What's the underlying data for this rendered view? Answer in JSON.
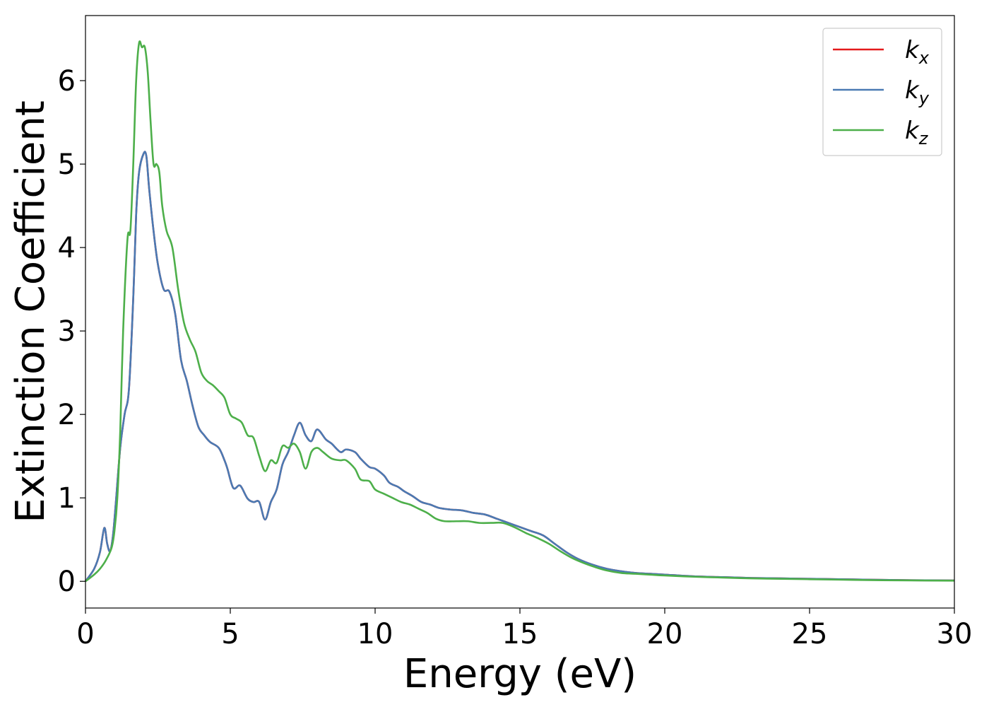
{
  "chart_data": {
    "type": "line",
    "xlabel": "Energy (eV)",
    "ylabel": "Extinction Coefficient",
    "xlim": [
      0,
      30
    ],
    "ylim": [
      -0.32,
      6.78
    ],
    "xticks": [
      "0",
      "5",
      "10",
      "15",
      "20",
      "25",
      "30"
    ],
    "yticks": [
      "0",
      "1",
      "2",
      "3",
      "4",
      "5",
      "6"
    ],
    "grid": false,
    "legend_position": "top-right",
    "series": [
      {
        "name": "k_x",
        "label_base": "k",
        "label_sub": "x",
        "color": "#e41a1c",
        "x": [
          0,
          0.3,
          0.5,
          0.65,
          0.75,
          0.85,
          0.95,
          1.05,
          1.2,
          1.35,
          1.5,
          1.65,
          1.75,
          1.85,
          2.0,
          2.1,
          2.2,
          2.35,
          2.5,
          2.7,
          2.9,
          3.1,
          3.3,
          3.5,
          3.7,
          3.9,
          4.1,
          4.3,
          4.6,
          4.8,
          4.9,
          5.1,
          5.3,
          5.4,
          5.6,
          5.8,
          6.0,
          6.2,
          6.4,
          6.6,
          6.8,
          7.0,
          7.2,
          7.4,
          7.6,
          7.8,
          8.0,
          8.3,
          8.5,
          8.8,
          9.0,
          9.3,
          9.5,
          9.8,
          10.0,
          10.3,
          10.5,
          10.8,
          11.0,
          11.3,
          11.6,
          11.9,
          12.2,
          12.6,
          13.0,
          13.4,
          13.8,
          14.2,
          14.6,
          15.0,
          15.4,
          15.8,
          16.2,
          16.6,
          17.0,
          17.5,
          18.0,
          18.5,
          19.0,
          19.5,
          20.0,
          21.0,
          22.0,
          23.0,
          24.0,
          25.0,
          26.0,
          27.0,
          28.0,
          29.0,
          30.0
        ],
        "values": [
          0,
          0.15,
          0.35,
          0.64,
          0.45,
          0.36,
          0.55,
          0.95,
          1.6,
          2.0,
          2.3,
          3.4,
          4.4,
          4.9,
          5.12,
          5.1,
          4.7,
          4.2,
          3.8,
          3.5,
          3.47,
          3.2,
          2.65,
          2.4,
          2.1,
          1.85,
          1.75,
          1.67,
          1.6,
          1.45,
          1.35,
          1.12,
          1.15,
          1.12,
          0.99,
          0.95,
          0.95,
          0.74,
          0.95,
          1.1,
          1.4,
          1.55,
          1.75,
          1.9,
          1.75,
          1.68,
          1.82,
          1.7,
          1.65,
          1.55,
          1.58,
          1.55,
          1.47,
          1.37,
          1.35,
          1.27,
          1.18,
          1.13,
          1.08,
          1.02,
          0.95,
          0.92,
          0.88,
          0.86,
          0.85,
          0.82,
          0.8,
          0.75,
          0.7,
          0.65,
          0.6,
          0.55,
          0.45,
          0.35,
          0.27,
          0.2,
          0.15,
          0.12,
          0.1,
          0.09,
          0.08,
          0.06,
          0.05,
          0.04,
          0.035,
          0.03,
          0.025,
          0.02,
          0.015,
          0.012,
          0.01
        ]
      },
      {
        "name": "k_y",
        "label_base": "k",
        "label_sub": "y",
        "color": "#4a7ab3",
        "x": [
          0,
          0.3,
          0.5,
          0.65,
          0.75,
          0.85,
          0.95,
          1.05,
          1.2,
          1.35,
          1.5,
          1.65,
          1.75,
          1.85,
          2.0,
          2.1,
          2.2,
          2.35,
          2.5,
          2.7,
          2.9,
          3.1,
          3.3,
          3.5,
          3.7,
          3.9,
          4.1,
          4.3,
          4.6,
          4.8,
          4.9,
          5.1,
          5.3,
          5.4,
          5.6,
          5.8,
          6.0,
          6.2,
          6.4,
          6.6,
          6.8,
          7.0,
          7.2,
          7.4,
          7.6,
          7.8,
          8.0,
          8.3,
          8.5,
          8.8,
          9.0,
          9.3,
          9.5,
          9.8,
          10.0,
          10.3,
          10.5,
          10.8,
          11.0,
          11.3,
          11.6,
          11.9,
          12.2,
          12.6,
          13.0,
          13.4,
          13.8,
          14.2,
          14.6,
          15.0,
          15.4,
          15.8,
          16.2,
          16.6,
          17.0,
          17.5,
          18.0,
          18.5,
          19.0,
          19.5,
          20.0,
          21.0,
          22.0,
          23.0,
          24.0,
          25.0,
          26.0,
          27.0,
          28.0,
          29.0,
          30.0
        ],
        "values": [
          0,
          0.15,
          0.35,
          0.64,
          0.45,
          0.36,
          0.55,
          0.95,
          1.6,
          2.0,
          2.3,
          3.4,
          4.4,
          4.9,
          5.12,
          5.1,
          4.7,
          4.2,
          3.8,
          3.5,
          3.47,
          3.2,
          2.65,
          2.4,
          2.1,
          1.85,
          1.75,
          1.67,
          1.6,
          1.45,
          1.35,
          1.12,
          1.15,
          1.12,
          0.99,
          0.95,
          0.95,
          0.74,
          0.95,
          1.1,
          1.4,
          1.55,
          1.75,
          1.9,
          1.75,
          1.68,
          1.82,
          1.7,
          1.65,
          1.55,
          1.58,
          1.55,
          1.47,
          1.37,
          1.35,
          1.27,
          1.18,
          1.13,
          1.08,
          1.02,
          0.95,
          0.92,
          0.88,
          0.86,
          0.85,
          0.82,
          0.8,
          0.75,
          0.7,
          0.65,
          0.6,
          0.55,
          0.45,
          0.35,
          0.27,
          0.2,
          0.15,
          0.12,
          0.1,
          0.09,
          0.08,
          0.06,
          0.05,
          0.04,
          0.035,
          0.03,
          0.025,
          0.02,
          0.015,
          0.012,
          0.01
        ]
      },
      {
        "name": "k_z",
        "label_base": "k",
        "label_sub": "z",
        "color": "#4daf4a",
        "x": [
          0,
          0.3,
          0.5,
          0.7,
          0.9,
          1.0,
          1.1,
          1.2,
          1.3,
          1.45,
          1.55,
          1.65,
          1.75,
          1.85,
          1.95,
          2.05,
          2.15,
          2.25,
          2.35,
          2.45,
          2.55,
          2.65,
          2.8,
          3.0,
          3.2,
          3.4,
          3.6,
          3.8,
          4.0,
          4.2,
          4.4,
          4.6,
          4.8,
          5.0,
          5.2,
          5.4,
          5.6,
          5.8,
          6.0,
          6.2,
          6.4,
          6.6,
          6.8,
          7.0,
          7.2,
          7.4,
          7.6,
          7.8,
          8.0,
          8.2,
          8.5,
          8.8,
          9.0,
          9.3,
          9.5,
          9.8,
          10.0,
          10.3,
          10.6,
          10.9,
          11.2,
          11.5,
          11.8,
          12.1,
          12.4,
          12.8,
          13.2,
          13.6,
          14.0,
          14.4,
          14.8,
          15.2,
          15.6,
          16.0,
          16.4,
          16.8,
          17.2,
          17.6,
          18.0,
          18.5,
          19.0,
          19.5,
          20.0,
          21.0,
          22.0,
          23.0,
          24.0,
          25.0,
          26.0,
          27.0,
          28.0,
          29.0,
          30.0
        ],
        "values": [
          0,
          0.08,
          0.15,
          0.25,
          0.4,
          0.6,
          1.0,
          1.8,
          3.0,
          4.1,
          4.2,
          5.0,
          6.0,
          6.45,
          6.4,
          6.4,
          6.1,
          5.5,
          5.0,
          5.0,
          4.9,
          4.5,
          4.2,
          4.0,
          3.5,
          3.1,
          2.9,
          2.75,
          2.5,
          2.4,
          2.35,
          2.28,
          2.2,
          2.0,
          1.95,
          1.9,
          1.75,
          1.72,
          1.5,
          1.32,
          1.45,
          1.42,
          1.62,
          1.6,
          1.65,
          1.55,
          1.35,
          1.55,
          1.6,
          1.55,
          1.47,
          1.45,
          1.45,
          1.35,
          1.22,
          1.2,
          1.1,
          1.05,
          1.0,
          0.95,
          0.92,
          0.87,
          0.82,
          0.75,
          0.72,
          0.72,
          0.72,
          0.7,
          0.7,
          0.7,
          0.65,
          0.58,
          0.52,
          0.45,
          0.36,
          0.28,
          0.22,
          0.17,
          0.13,
          0.1,
          0.09,
          0.08,
          0.07,
          0.055,
          0.045,
          0.035,
          0.03,
          0.025,
          0.02,
          0.015,
          0.012,
          0.01,
          0.008
        ]
      }
    ]
  }
}
